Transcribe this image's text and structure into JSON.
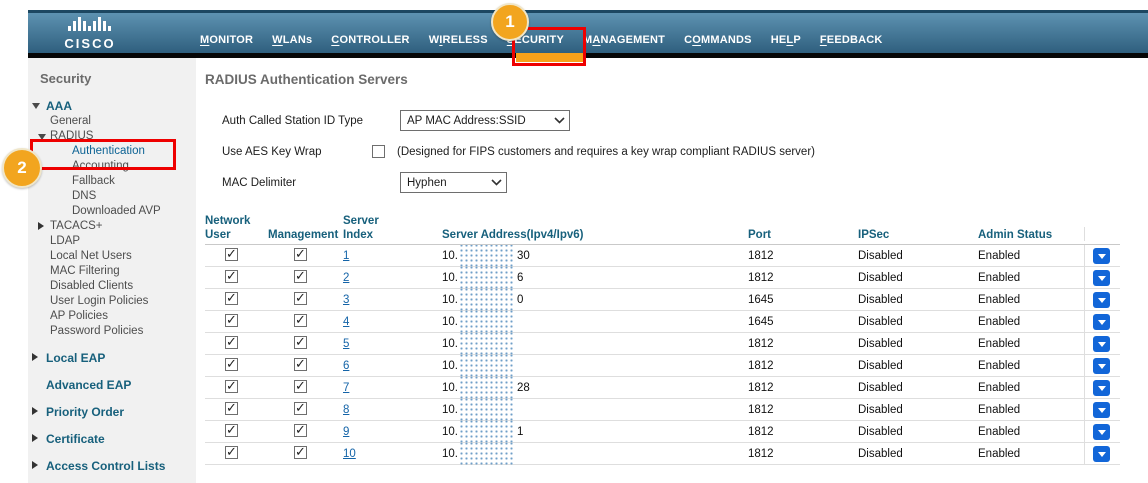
{
  "colors": {
    "nav_bar_top": "#5d92b1",
    "nav_bar_bottom": "#2f5f7e",
    "nav_bar_border": "#1c4761",
    "nav_text": "#ffffff",
    "black_strip": "#060606",
    "sidebar_bg": "#f1f1f1",
    "section_heading": "#17607c",
    "item_text": "#4d4d4d",
    "selected_item": "#0d6394",
    "title_text": "#6b6b6b",
    "table_header": "#17607c",
    "link_blue": "#1464a8",
    "row_line": "#dedede",
    "header_line": "#c9c9c9",
    "dropdown_button_blue": "#1266d8",
    "annotation_red": "#ee0000",
    "callout_orange": "#f2a51f",
    "redact_dot": "#6f9fc8"
  },
  "header": {
    "brand": "CISCO",
    "nav": [
      {
        "label": "MONITOR",
        "underline_index": 0
      },
      {
        "label": "WLANs",
        "underline_index": 0
      },
      {
        "label": "CONTROLLER",
        "underline_index": 0
      },
      {
        "label": "WIRELESS",
        "underline_index": 1
      },
      {
        "label": "SECURITY",
        "underline_index": 0,
        "highlighted": true
      },
      {
        "label": "MANAGEMENT",
        "underline_index": 1
      },
      {
        "label": "COMMANDS",
        "underline_index": 1
      },
      {
        "label": "HELP",
        "underline_index": 2
      },
      {
        "label": "FEEDBACK",
        "underline_index": 0
      }
    ]
  },
  "annotations": {
    "callout1": "1",
    "callout2": "2"
  },
  "sidebar": {
    "title": "Security",
    "items": [
      {
        "label": "AAA",
        "kind": "section",
        "arrow": "down",
        "indent": 1,
        "first": true
      },
      {
        "label": "General",
        "kind": "item",
        "arrow": null,
        "indent": 2
      },
      {
        "label": "RADIUS",
        "kind": "item",
        "arrow": "down",
        "indent": 2
      },
      {
        "label": "Authentication",
        "kind": "item",
        "arrow": null,
        "indent": 3,
        "selected": true
      },
      {
        "label": "Accounting",
        "kind": "item",
        "arrow": null,
        "indent": 3
      },
      {
        "label": "Fallback",
        "kind": "item",
        "arrow": null,
        "indent": 3
      },
      {
        "label": "DNS",
        "kind": "item",
        "arrow": null,
        "indent": 3
      },
      {
        "label": "Downloaded AVP",
        "kind": "item",
        "arrow": null,
        "indent": 3
      },
      {
        "label": "TACACS+",
        "kind": "item",
        "arrow": "right",
        "indent": 2
      },
      {
        "label": "LDAP",
        "kind": "item",
        "arrow": null,
        "indent": 2
      },
      {
        "label": "Local Net Users",
        "kind": "item",
        "arrow": null,
        "indent": 2
      },
      {
        "label": "MAC Filtering",
        "kind": "item",
        "arrow": null,
        "indent": 2
      },
      {
        "label": "Disabled Clients",
        "kind": "item",
        "arrow": null,
        "indent": 2
      },
      {
        "label": "User Login Policies",
        "kind": "item",
        "arrow": null,
        "indent": 2
      },
      {
        "label": "AP Policies",
        "kind": "item",
        "arrow": null,
        "indent": 2
      },
      {
        "label": "Password Policies",
        "kind": "item",
        "arrow": null,
        "indent": 2
      },
      {
        "label": "Local EAP",
        "kind": "section",
        "arrow": "right",
        "indent": 1
      },
      {
        "label": "Advanced EAP",
        "kind": "section",
        "arrow": null,
        "indent": 1
      },
      {
        "label": "Priority Order",
        "kind": "section",
        "arrow": "right",
        "indent": 1
      },
      {
        "label": "Certificate",
        "kind": "section",
        "arrow": "right",
        "indent": 1
      },
      {
        "label": "Access Control Lists",
        "kind": "section",
        "arrow": "right",
        "indent": 1
      }
    ]
  },
  "main": {
    "title": "RADIUS Authentication Servers",
    "form": {
      "auth_called_label": "Auth Called Station ID Type",
      "auth_called_value": "AP MAC Address:SSID",
      "aes_label": "Use AES Key Wrap",
      "aes_checked": false,
      "aes_note": "(Designed for FIPS customers and requires a key wrap compliant RADIUS server)",
      "mac_delimiter_label": "MAC Delimiter",
      "mac_delimiter_value": "Hyphen"
    },
    "table": {
      "columns": [
        {
          "top": "Network",
          "bottom": "User"
        },
        {
          "top": "",
          "bottom": "Management"
        },
        {
          "top": "Server",
          "bottom": "Index"
        },
        {
          "top": "",
          "bottom": "Server Address(Ipv4/Ipv6)"
        },
        {
          "top": "",
          "bottom": "Port"
        },
        {
          "top": "",
          "bottom": "IPSec"
        },
        {
          "top": "",
          "bottom": "Admin Status"
        }
      ],
      "rows": [
        {
          "network_user": true,
          "management": true,
          "index": "1",
          "address_prefix": "10.",
          "address_redacted": true,
          "address_suffix": "30",
          "port": "1812",
          "ipsec": "Disabled",
          "admin_status": "Enabled"
        },
        {
          "network_user": true,
          "management": true,
          "index": "2",
          "address_prefix": "10.",
          "address_redacted": true,
          "address_suffix": "6",
          "port": "1812",
          "ipsec": "Disabled",
          "admin_status": "Enabled"
        },
        {
          "network_user": true,
          "management": true,
          "index": "3",
          "address_prefix": "10.",
          "address_redacted": true,
          "address_suffix": "0",
          "port": "1645",
          "ipsec": "Disabled",
          "admin_status": "Enabled"
        },
        {
          "network_user": true,
          "management": true,
          "index": "4",
          "address_prefix": "10.",
          "address_redacted": true,
          "address_suffix": "",
          "port": "1645",
          "ipsec": "Disabled",
          "admin_status": "Enabled"
        },
        {
          "network_user": true,
          "management": true,
          "index": "5",
          "address_prefix": "10.",
          "address_redacted": true,
          "address_suffix": "",
          "port": "1812",
          "ipsec": "Disabled",
          "admin_status": "Enabled"
        },
        {
          "network_user": true,
          "management": true,
          "index": "6",
          "address_prefix": "10.",
          "address_redacted": true,
          "address_suffix": "",
          "port": "1812",
          "ipsec": "Disabled",
          "admin_status": "Enabled"
        },
        {
          "network_user": true,
          "management": true,
          "index": "7",
          "address_prefix": "10.",
          "address_redacted": true,
          "address_suffix": "28",
          "port": "1812",
          "ipsec": "Disabled",
          "admin_status": "Enabled"
        },
        {
          "network_user": true,
          "management": true,
          "index": "8",
          "address_prefix": "10.",
          "address_redacted": true,
          "address_suffix": "",
          "port": "1812",
          "ipsec": "Disabled",
          "admin_status": "Enabled"
        },
        {
          "network_user": true,
          "management": true,
          "index": "9",
          "address_prefix": "10.",
          "address_redacted": true,
          "address_suffix": "1",
          "port": "1812",
          "ipsec": "Disabled",
          "admin_status": "Enabled"
        },
        {
          "network_user": true,
          "management": true,
          "index": "10",
          "address_prefix": "10.",
          "address_redacted": true,
          "address_suffix": "",
          "port": "1812",
          "ipsec": "Disabled",
          "admin_status": "Enabled"
        }
      ]
    }
  }
}
